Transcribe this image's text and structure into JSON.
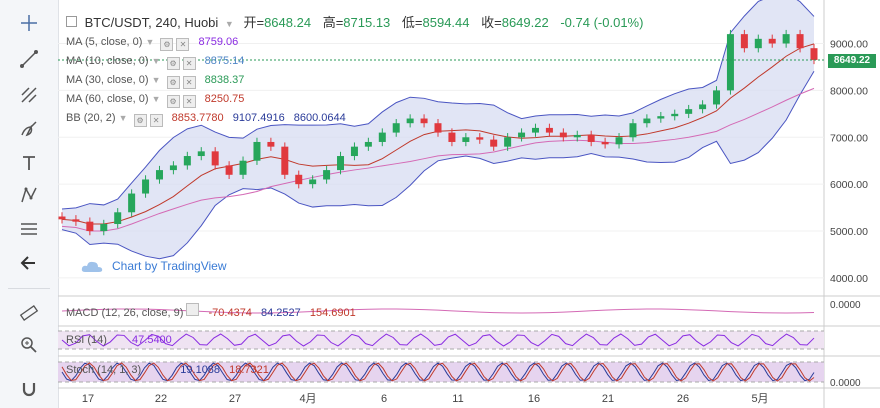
{
  "toolbar": {
    "tools": [
      "crosshair-icon",
      "trend-line-icon",
      "pitchfork-icon",
      "brush-icon",
      "text-icon",
      "pattern-icon",
      "fib-icon",
      "back-arrow-icon",
      "ruler-icon",
      "zoom-icon",
      "magnet-icon"
    ]
  },
  "header": {
    "symbol": "BTC/USDT, 240, Huobi",
    "open_label": "开=",
    "open": "8648.24",
    "high_label": "高=",
    "high": "8715.13",
    "low_label": "低=",
    "low": "8594.44",
    "close_label": "收=",
    "close": "8649.22",
    "change": "-0.74 (-0.01%)"
  },
  "indicators": [
    {
      "name": "MA (5, close, 0)",
      "value": "8759.06",
      "color": "#8a2be2"
    },
    {
      "name": "MA (10, close, 0)",
      "value": "8875.14",
      "color": "#4f86c6"
    },
    {
      "name": "MA (30, close, 0)",
      "value": "8838.37",
      "color": "#2a9a57"
    },
    {
      "name": "MA (60, close, 0)",
      "value": "8250.75",
      "color": "#c0392b"
    },
    {
      "name": "BB (20, 2)",
      "value": "8853.7780",
      "value2": "9107.4916",
      "value3": "8600.0644",
      "color": "#c0392b"
    }
  ],
  "watermark": "Chart by TradingView",
  "macd": {
    "label": "MACD (12, 26, close, 9)",
    "v1": "-70.4374",
    "v2": "84.2527",
    "v3": "154.6901",
    "axis": "0.0000"
  },
  "rsi": {
    "label": "RSI (14)",
    "value": "47.5400"
  },
  "stoch": {
    "label": "Stoch (14, 1, 3)",
    "v1": "19.1088",
    "v2": "18.7321",
    "axis": "0.0000"
  },
  "last_price": "8649.22",
  "chart_data": {
    "type": "candlestick",
    "title": "BTC/USDT, 240, Huobi",
    "y_ticks": [
      4000,
      5000,
      6000,
      7000,
      8000,
      9000
    ],
    "y_tick_labels": [
      "4000.00",
      "5000.00",
      "6000.00",
      "7000.00",
      "8000.00",
      "9000.00"
    ],
    "ylim": [
      3700,
      9800
    ],
    "x_tick_labels": [
      "17",
      "22",
      "27",
      "4月",
      "6",
      "11",
      "16",
      "21",
      "26",
      "5月"
    ],
    "close_series": [
      5250,
      5200,
      5000,
      5150,
      5400,
      5800,
      6100,
      6300,
      6400,
      6600,
      6700,
      6400,
      6200,
      6500,
      6900,
      6800,
      6200,
      6000,
      6100,
      6300,
      6600,
      6800,
      6900,
      7100,
      7300,
      7400,
      7300,
      7100,
      6900,
      7000,
      6950,
      6800,
      7000,
      7100,
      7200,
      7100,
      7000,
      7050,
      6900,
      6850,
      7000,
      7300,
      7400,
      7450,
      7500,
      7600,
      7700,
      8000,
      9200,
      8900,
      9100,
      9000,
      9200,
      8900,
      8649
    ],
    "colors": {
      "up": "#26a65b",
      "down": "#e0393e",
      "bb_fill": "#d7dcf2",
      "bb_line": "#4a55c2"
    }
  }
}
